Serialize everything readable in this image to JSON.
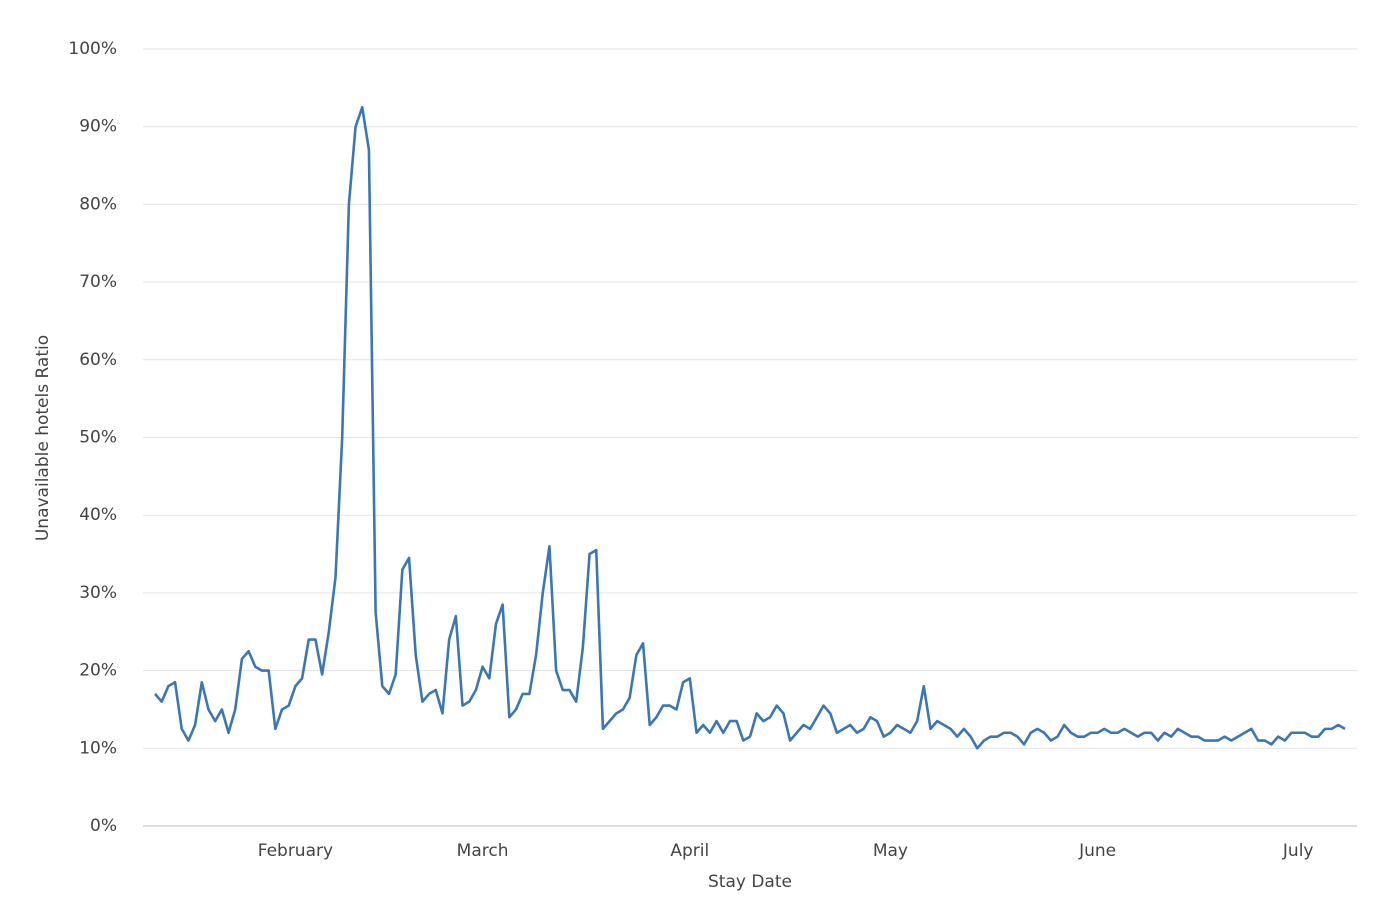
{
  "chart_data": {
    "type": "line",
    "x_label": "Stay Date",
    "y_label": "Unavailable hotels Ratio",
    "categories": [
      null,
      null,
      null,
      null,
      null,
      null,
      null,
      null,
      null,
      null,
      null,
      null,
      null,
      null,
      null,
      null,
      null,
      null,
      null,
      null,
      null,
      "February",
      null,
      null,
      null,
      null,
      null,
      null,
      null,
      null,
      null,
      null,
      null,
      null,
      null,
      null,
      null,
      null,
      null,
      null,
      null,
      null,
      null,
      null,
      null,
      null,
      null,
      null,
      null,
      "March",
      null,
      null,
      null,
      null,
      null,
      null,
      null,
      null,
      null,
      null,
      null,
      null,
      null,
      null,
      null,
      null,
      null,
      null,
      null,
      null,
      null,
      null,
      null,
      null,
      null,
      null,
      null,
      null,
      null,
      null,
      "April",
      null,
      null,
      null,
      null,
      null,
      null,
      null,
      null,
      null,
      null,
      null,
      null,
      null,
      null,
      null,
      null,
      null,
      null,
      null,
      null,
      null,
      null,
      null,
      null,
      null,
      null,
      null,
      null,
      null,
      "May",
      null,
      null,
      null,
      null,
      null,
      null,
      null,
      null,
      null,
      null,
      null,
      null,
      null,
      null,
      null,
      null,
      null,
      null,
      null,
      null,
      null,
      null,
      null,
      null,
      null,
      null,
      null,
      null,
      null,
      null,
      "June",
      null,
      null,
      null,
      null,
      null,
      null,
      null,
      null,
      null,
      null,
      null,
      null,
      null,
      null,
      null,
      null,
      null,
      null,
      null,
      null,
      null,
      null,
      null,
      null,
      null,
      null,
      null,
      null,
      null,
      "July",
      null,
      null,
      null,
      null,
      null,
      null,
      null
    ],
    "series": [
      {
        "color": "#3a77b3",
        "values": [
          17,
          16,
          18,
          18.5,
          12.5,
          11,
          13,
          18.5,
          15,
          13.5,
          15,
          12,
          15,
          21.5,
          22.5,
          20.5,
          20,
          20,
          12.5,
          15,
          15.5,
          18,
          19,
          24,
          24,
          19.5,
          25,
          32,
          50,
          80,
          90,
          92.5,
          87,
          27.5,
          18,
          17,
          19.5,
          33,
          34.5,
          22,
          16,
          17,
          17.5,
          14.5,
          24,
          27,
          15.5,
          16,
          17.5,
          20.5,
          19,
          26,
          28.5,
          14,
          15,
          17,
          17,
          22,
          30,
          36,
          20,
          17.5,
          17.5,
          16,
          23,
          35,
          35.5,
          12.5,
          13.5,
          14.5,
          15,
          16.5,
          22,
          23.5,
          13,
          14,
          15.5,
          15.5,
          15,
          18.5,
          19,
          12,
          13,
          12,
          13.5,
          12,
          13.5,
          13.5,
          11,
          11.5,
          14.5,
          13.5,
          14,
          15.5,
          14.5,
          11,
          12,
          13,
          12.5,
          14,
          15.5,
          14.5,
          12,
          12.5,
          13,
          12,
          12.5,
          14,
          13.5,
          11.5,
          12,
          13,
          12.5,
          12,
          13.5,
          18,
          12.5,
          13.5,
          13,
          12.5,
          11.5,
          12.5,
          11.5,
          10,
          11,
          11.5,
          11.5,
          12,
          12,
          11.5,
          10.5,
          12,
          12.5,
          12,
          11,
          11.5,
          13,
          12,
          11.5,
          11.5,
          12,
          12,
          12.5,
          12,
          12,
          12.5,
          12,
          11.5,
          12,
          12,
          11,
          12,
          11.5,
          12.5,
          12,
          11.5,
          11.5,
          11,
          11,
          11,
          11.5,
          11,
          11.5,
          12,
          12.5,
          11,
          11,
          10.5,
          11.5,
          11,
          12,
          12,
          12,
          11.5,
          11.5,
          12.5,
          12.5,
          13,
          12.5
        ]
      }
    ],
    "ylim": [
      0,
      100
    ],
    "yticks": [
      {
        "value": 0,
        "label": "0%"
      },
      {
        "value": 10,
        "label": "10%"
      },
      {
        "value": 20,
        "label": "20%"
      },
      {
        "value": 30,
        "label": "30%"
      },
      {
        "value": 40,
        "label": "40%"
      },
      {
        "value": 50,
        "label": "50%"
      },
      {
        "value": 60,
        "label": "60%"
      },
      {
        "value": 70,
        "label": "70%"
      },
      {
        "value": 80,
        "label": "80%"
      },
      {
        "value": 90,
        "label": "90%"
      },
      {
        "value": 100,
        "label": "100%"
      }
    ],
    "grid": true
  }
}
